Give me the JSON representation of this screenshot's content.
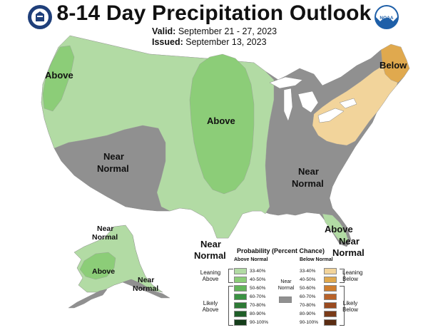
{
  "title": "8-14 Day Precipitation Outlook",
  "valid_label": "Valid:",
  "valid_value": "September 21 - 27, 2023",
  "issued_label": "Issued:",
  "issued_value": "September 13, 2023",
  "logos": {
    "left": "doc-seal-icon",
    "right": "noaa-logo-icon",
    "right_text": "NOAA"
  },
  "colors": {
    "above_33_40": "#b2dba4",
    "above_40_50": "#8ccd78",
    "above_50_60": "#63b55a",
    "above_60_70": "#3a9243",
    "above_70_80": "#2d7a35",
    "above_80_90": "#1f5e28",
    "above_90_100": "#143d1a",
    "near_normal": "#909090",
    "below_33_40": "#f2d49b",
    "below_40_50": "#e0a94e",
    "below_50_60": "#cf7d2e",
    "below_60_70": "#b8622a",
    "below_70_80": "#9a4a1f",
    "below_80_90": "#7a3b18",
    "below_90_100": "#5a2c12"
  },
  "map_labels": {
    "above_pacific_nw": "Above",
    "above_plains": "Above",
    "below_northeast": "Below",
    "near_normal_west_1": "Near",
    "near_normal_west_2": "Normal",
    "near_normal_east_1": "Near",
    "near_normal_east_2": "Normal",
    "near_normal_texas_1": "Near",
    "near_normal_texas_2": "Normal",
    "above_florida": "Above",
    "near_normal_florida_1": "Near",
    "near_normal_florida_2": "Normal",
    "near_normal_ak_north_1": "Near",
    "near_normal_ak_north_2": "Normal",
    "above_alaska": "Above",
    "near_normal_ak_south_1": "Near",
    "near_normal_ak_south_2": "Normal"
  },
  "legend": {
    "title": "Probability (Percent Chance)",
    "above_header": "Above Normal",
    "below_header": "Below Normal",
    "near_label_1": "Near",
    "near_label_2": "Normal",
    "bins": [
      "33-40%",
      "40-50%",
      "50-60%",
      "60-70%",
      "70-80%",
      "80-90%",
      "90-100%"
    ],
    "leaning_above_1": "Leaning",
    "leaning_above_2": "Above",
    "likely_above_1": "Likely",
    "likely_above_2": "Above",
    "leaning_below_1": "Leaning",
    "leaning_below_2": "Below",
    "likely_below_1": "Likely",
    "likely_below_2": "Below"
  }
}
